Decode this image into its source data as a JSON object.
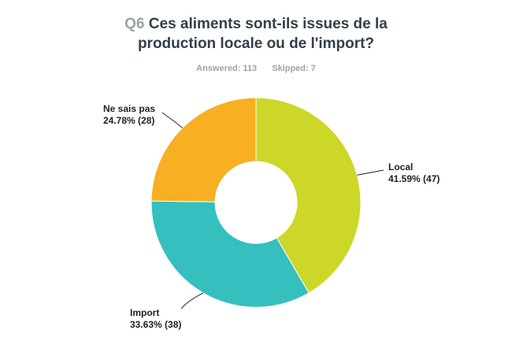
{
  "header": {
    "question_number": "Q6",
    "title_line1": "Ces aliments sont-ils issues de la",
    "title_line2": "production locale ou de l'import?",
    "answered": "Answered: 113",
    "skipped": "Skipped: 7"
  },
  "chart_data": {
    "type": "pie",
    "style": "donut",
    "title": "Ces aliments sont-ils issues de la production locale ou de l'import?",
    "slices": [
      {
        "name": "Local",
        "percent_label": "41.59% (47)",
        "percent": 41.59,
        "count": 47,
        "color": "#cdd728"
      },
      {
        "name": "Import",
        "percent_label": "33.63% (38)",
        "percent": 33.63,
        "count": 38,
        "color": "#35bfbf"
      },
      {
        "name": "Ne sais pas",
        "percent_label": "24.78% (28)",
        "percent": 24.78,
        "count": 28,
        "color": "#f6b022"
      }
    ]
  }
}
